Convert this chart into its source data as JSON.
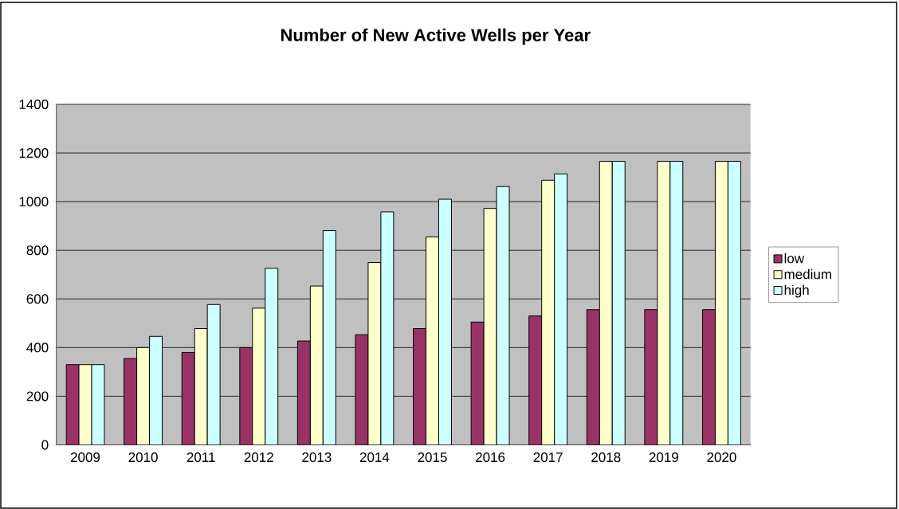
{
  "chart_data": {
    "type": "bar",
    "title": "Number of New Active Wells per Year",
    "categories": [
      "2009",
      "2010",
      "2011",
      "2012",
      "2013",
      "2014",
      "2015",
      "2016",
      "2017",
      "2018",
      "2019",
      "2020"
    ],
    "series": [
      {
        "name": "low",
        "color": "#993366",
        "values": [
          330,
          355,
          380,
          400,
          427,
          453,
          478,
          505,
          530,
          556,
          556,
          556
        ]
      },
      {
        "name": "medium",
        "color": "#ffffcc",
        "values": [
          330,
          400,
          478,
          562,
          653,
          750,
          855,
          972,
          1088,
          1166,
          1166,
          1166
        ]
      },
      {
        "name": "high",
        "color": "#ccffff",
        "values": [
          330,
          446,
          577,
          726,
          881,
          958,
          1010,
          1062,
          1114,
          1166,
          1166,
          1166
        ]
      }
    ],
    "ylim": [
      0,
      1400
    ],
    "yticks": [
      0,
      200,
      400,
      600,
      800,
      1000,
      1200,
      1400
    ],
    "grid": "y",
    "legend": "right"
  }
}
